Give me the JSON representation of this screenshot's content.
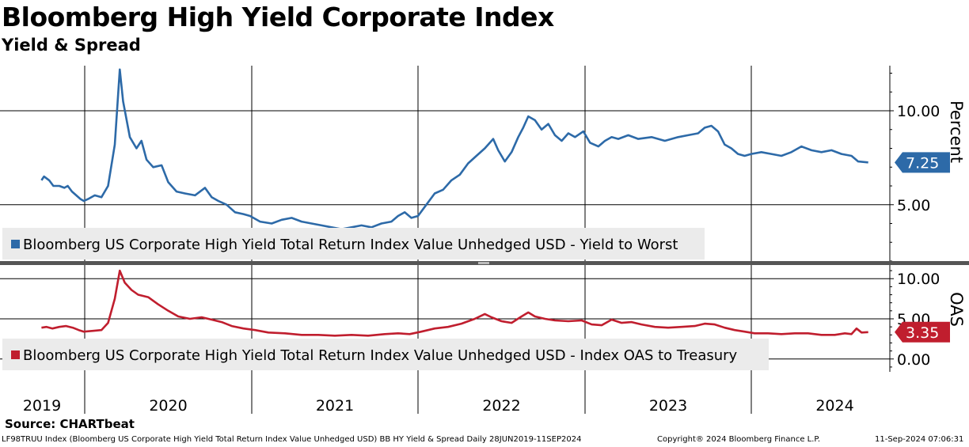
{
  "chart_data": {
    "type": "line",
    "title": "Bloomberg High Yield Corporate Index",
    "subtitle": "Yield & Spread",
    "x_categories": [
      "2019",
      "2020",
      "2021",
      "2022",
      "2023",
      "2024"
    ],
    "x_range": [
      2019.49,
      2024.7
    ],
    "panels": [
      {
        "name": "yield",
        "ylabel": "Percent",
        "ylim": [
          2.0,
          12.4
        ],
        "yticks": [
          {
            "value": 10.0,
            "label": "10.00"
          },
          {
            "value": 5.0,
            "label": "5.00"
          }
        ],
        "legend": "Bloomberg US Corporate High Yield Total Return Index Value Unhedged USD - Yield to Worst",
        "color": "#2d6aa8",
        "last_value": 7.25,
        "last_label": "7.25",
        "series": [
          [
            2019.49,
            6.3
          ],
          [
            2019.52,
            6.5
          ],
          [
            2019.58,
            6.3
          ],
          [
            2019.63,
            6.0
          ],
          [
            2019.7,
            6.0
          ],
          [
            2019.76,
            5.9
          ],
          [
            2019.8,
            6.0
          ],
          [
            2019.85,
            5.7
          ],
          [
            2019.9,
            5.5
          ],
          [
            2019.95,
            5.3
          ],
          [
            2019.99,
            5.2
          ],
          [
            2020.02,
            5.3
          ],
          [
            2020.06,
            5.5
          ],
          [
            2020.1,
            5.4
          ],
          [
            2020.14,
            6.0
          ],
          [
            2020.18,
            8.2
          ],
          [
            2020.21,
            12.2
          ],
          [
            2020.23,
            10.5
          ],
          [
            2020.27,
            8.6
          ],
          [
            2020.31,
            8.0
          ],
          [
            2020.34,
            8.4
          ],
          [
            2020.37,
            7.4
          ],
          [
            2020.41,
            7.0
          ],
          [
            2020.46,
            7.1
          ],
          [
            2020.5,
            6.2
          ],
          [
            2020.55,
            5.7
          ],
          [
            2020.6,
            5.6
          ],
          [
            2020.66,
            5.5
          ],
          [
            2020.72,
            5.9
          ],
          [
            2020.76,
            5.4
          ],
          [
            2020.8,
            5.2
          ],
          [
            2020.85,
            5.0
          ],
          [
            2020.9,
            4.6
          ],
          [
            2020.95,
            4.5
          ],
          [
            2020.99,
            4.4
          ],
          [
            2021.05,
            4.1
          ],
          [
            2021.12,
            4.0
          ],
          [
            2021.18,
            4.2
          ],
          [
            2021.24,
            4.3
          ],
          [
            2021.3,
            4.1
          ],
          [
            2021.36,
            4.0
          ],
          [
            2021.42,
            3.9
          ],
          [
            2021.48,
            3.8
          ],
          [
            2021.54,
            3.7
          ],
          [
            2021.6,
            3.8
          ],
          [
            2021.66,
            3.9
          ],
          [
            2021.72,
            3.8
          ],
          [
            2021.78,
            4.0
          ],
          [
            2021.84,
            4.1
          ],
          [
            2021.88,
            4.4
          ],
          [
            2021.92,
            4.6
          ],
          [
            2021.96,
            4.3
          ],
          [
            2022.0,
            4.4
          ],
          [
            2022.05,
            5.0
          ],
          [
            2022.1,
            5.6
          ],
          [
            2022.15,
            5.8
          ],
          [
            2022.2,
            6.3
          ],
          [
            2022.25,
            6.6
          ],
          [
            2022.3,
            7.2
          ],
          [
            2022.35,
            7.6
          ],
          [
            2022.4,
            8.0
          ],
          [
            2022.45,
            8.5
          ],
          [
            2022.48,
            7.9
          ],
          [
            2022.52,
            7.3
          ],
          [
            2022.56,
            7.8
          ],
          [
            2022.6,
            8.6
          ],
          [
            2022.63,
            9.1
          ],
          [
            2022.66,
            9.7
          ],
          [
            2022.7,
            9.5
          ],
          [
            2022.74,
            9.0
          ],
          [
            2022.78,
            9.3
          ],
          [
            2022.82,
            8.7
          ],
          [
            2022.86,
            8.4
          ],
          [
            2022.9,
            8.8
          ],
          [
            2022.94,
            8.6
          ],
          [
            2022.99,
            8.9
          ],
          [
            2023.03,
            8.3
          ],
          [
            2023.08,
            8.1
          ],
          [
            2023.12,
            8.4
          ],
          [
            2023.16,
            8.6
          ],
          [
            2023.2,
            8.5
          ],
          [
            2023.26,
            8.7
          ],
          [
            2023.32,
            8.5
          ],
          [
            2023.4,
            8.6
          ],
          [
            2023.48,
            8.4
          ],
          [
            2023.56,
            8.6
          ],
          [
            2023.62,
            8.7
          ],
          [
            2023.68,
            8.8
          ],
          [
            2023.72,
            9.1
          ],
          [
            2023.76,
            9.2
          ],
          [
            2023.8,
            8.9
          ],
          [
            2023.84,
            8.2
          ],
          [
            2023.88,
            8.0
          ],
          [
            2023.92,
            7.7
          ],
          [
            2023.96,
            7.6
          ],
          [
            2024.0,
            7.7
          ],
          [
            2024.06,
            7.8
          ],
          [
            2024.12,
            7.7
          ],
          [
            2024.18,
            7.6
          ],
          [
            2024.24,
            7.8
          ],
          [
            2024.3,
            8.1
          ],
          [
            2024.36,
            7.9
          ],
          [
            2024.42,
            7.8
          ],
          [
            2024.48,
            7.9
          ],
          [
            2024.54,
            7.7
          ],
          [
            2024.6,
            7.6
          ],
          [
            2024.64,
            7.3
          ],
          [
            2024.7,
            7.25
          ]
        ]
      },
      {
        "name": "oas",
        "ylabel": "OAS",
        "ylim": [
          -1.6,
          11.6
        ],
        "yticks": [
          {
            "value": 10.0,
            "label": "10.00"
          },
          {
            "value": 5.0,
            "label": "5.00"
          },
          {
            "value": 0.0,
            "label": "0.00"
          }
        ],
        "legend": "Bloomberg US Corporate High Yield Total Return Index Value Unhedged USD - Index OAS to Treasury",
        "color": "#c01e2e",
        "last_value": 3.35,
        "last_label": "3.35",
        "series": [
          [
            2019.49,
            3.9
          ],
          [
            2019.55,
            4.0
          ],
          [
            2019.62,
            3.8
          ],
          [
            2019.7,
            4.0
          ],
          [
            2019.78,
            4.1
          ],
          [
            2019.86,
            3.9
          ],
          [
            2019.93,
            3.6
          ],
          [
            2019.99,
            3.4
          ],
          [
            2020.05,
            3.5
          ],
          [
            2020.1,
            3.6
          ],
          [
            2020.14,
            4.5
          ],
          [
            2020.18,
            7.5
          ],
          [
            2020.21,
            11.0
          ],
          [
            2020.24,
            9.5
          ],
          [
            2020.28,
            8.6
          ],
          [
            2020.32,
            8.0
          ],
          [
            2020.38,
            7.7
          ],
          [
            2020.44,
            6.8
          ],
          [
            2020.5,
            6.0
          ],
          [
            2020.56,
            5.3
          ],
          [
            2020.63,
            5.0
          ],
          [
            2020.7,
            5.2
          ],
          [
            2020.76,
            4.9
          ],
          [
            2020.82,
            4.6
          ],
          [
            2020.88,
            4.1
          ],
          [
            2020.95,
            3.8
          ],
          [
            2021.02,
            3.6
          ],
          [
            2021.1,
            3.3
          ],
          [
            2021.2,
            3.2
          ],
          [
            2021.3,
            3.0
          ],
          [
            2021.4,
            3.0
          ],
          [
            2021.5,
            2.9
          ],
          [
            2021.6,
            3.0
          ],
          [
            2021.7,
            2.9
          ],
          [
            2021.8,
            3.1
          ],
          [
            2021.88,
            3.2
          ],
          [
            2021.95,
            3.1
          ],
          [
            2022.02,
            3.4
          ],
          [
            2022.1,
            3.8
          ],
          [
            2022.18,
            4.0
          ],
          [
            2022.26,
            4.4
          ],
          [
            2022.34,
            5.0
          ],
          [
            2022.4,
            5.6
          ],
          [
            2022.44,
            5.2
          ],
          [
            2022.5,
            4.7
          ],
          [
            2022.56,
            4.5
          ],
          [
            2022.62,
            5.3
          ],
          [
            2022.66,
            5.8
          ],
          [
            2022.7,
            5.3
          ],
          [
            2022.76,
            5.0
          ],
          [
            2022.82,
            4.8
          ],
          [
            2022.9,
            4.7
          ],
          [
            2022.98,
            4.8
          ],
          [
            2023.04,
            4.3
          ],
          [
            2023.1,
            4.2
          ],
          [
            2023.16,
            4.9
          ],
          [
            2023.22,
            4.5
          ],
          [
            2023.28,
            4.6
          ],
          [
            2023.34,
            4.3
          ],
          [
            2023.42,
            4.0
          ],
          [
            2023.5,
            3.9
          ],
          [
            2023.58,
            4.0
          ],
          [
            2023.66,
            4.1
          ],
          [
            2023.72,
            4.4
          ],
          [
            2023.78,
            4.3
          ],
          [
            2023.84,
            3.9
          ],
          [
            2023.9,
            3.6
          ],
          [
            2023.96,
            3.4
          ],
          [
            2024.02,
            3.2
          ],
          [
            2024.1,
            3.2
          ],
          [
            2024.18,
            3.1
          ],
          [
            2024.26,
            3.2
          ],
          [
            2024.34,
            3.2
          ],
          [
            2024.42,
            3.0
          ],
          [
            2024.5,
            3.0
          ],
          [
            2024.56,
            3.2
          ],
          [
            2024.6,
            3.1
          ],
          [
            2024.63,
            3.8
          ],
          [
            2024.66,
            3.3
          ],
          [
            2024.7,
            3.35
          ]
        ]
      }
    ]
  },
  "footer": {
    "source": "Source: CHARTbeat",
    "description": "LF98TRUU Index (Bloomberg US Corporate High Yield Total Return Index Value Unhedged USD) BB HY Yield & Spread  Daily 28JUN2019-11SEP2024",
    "copyright": "Copyright® 2024 Bloomberg Finance L.P.",
    "timestamp": "11-Sep-2024 07:06:31"
  },
  "colors": {
    "yield": "#2d6aa8",
    "oas": "#c01e2e",
    "legend_bg": "#ebebeb",
    "divider": "#555555"
  }
}
